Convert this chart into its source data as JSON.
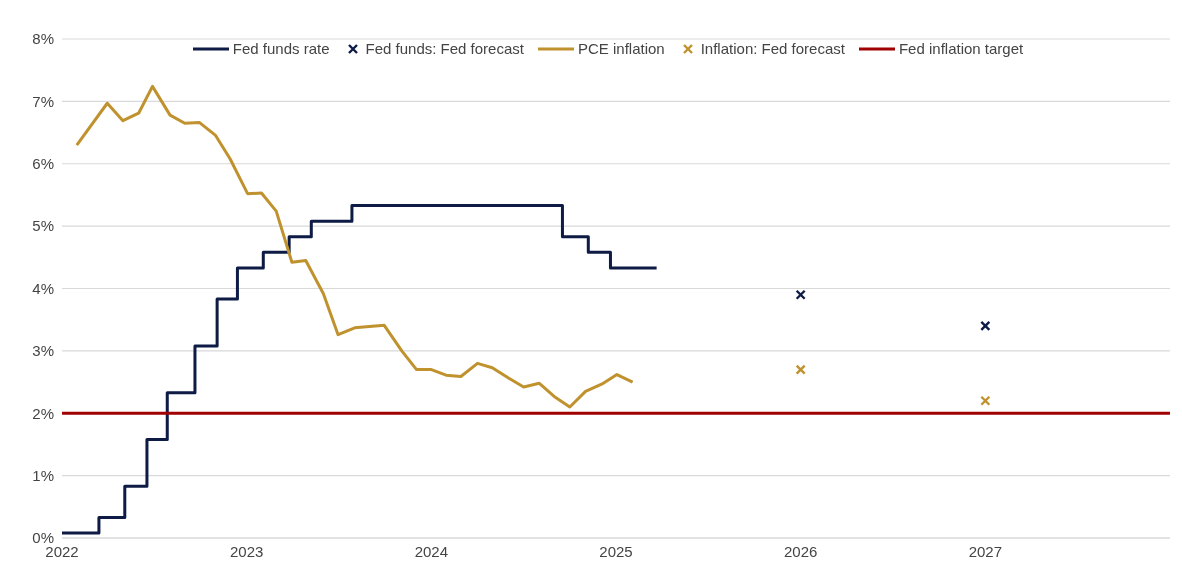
{
  "chart_data": {
    "type": "line",
    "xlim": [
      2022,
      2028
    ],
    "xticks": [
      2022,
      2023,
      2024,
      2025,
      2026,
      2027
    ],
    "ylim": [
      0,
      8
    ],
    "yticks": [
      {
        "value": 0,
        "label": "0%"
      },
      {
        "value": 1,
        "label": "1%"
      },
      {
        "value": 2,
        "label": "2%"
      },
      {
        "value": 3,
        "label": "3%"
      },
      {
        "value": 4,
        "label": "4%"
      },
      {
        "value": 5,
        "label": "5%"
      },
      {
        "value": 6,
        "label": "6%"
      },
      {
        "value": 7,
        "label": "7%"
      },
      {
        "value": 8,
        "label": "8%"
      }
    ],
    "grid": "y",
    "legend": "top",
    "line_style": "solid",
    "series": [
      {
        "name": "Fed funds rate",
        "type": "step",
        "color": "#0d1b45",
        "marker": "none",
        "x": [
          2022.0,
          2022.2,
          2022.34,
          2022.46,
          2022.57,
          2022.72,
          2022.84,
          2022.95,
          2023.09,
          2023.23,
          2023.35,
          2023.57,
          2024.71,
          2024.85,
          2024.97,
          2025.22
        ],
        "values": [
          0.08,
          0.33,
          0.83,
          1.58,
          2.33,
          3.08,
          3.83,
          4.33,
          4.58,
          4.83,
          5.08,
          5.33,
          4.83,
          4.58,
          4.33,
          4.33
        ]
      },
      {
        "name": "Fed funds: Fed forecast",
        "type": "scatter",
        "color": "#0d1b45",
        "marker": "cross",
        "x": [
          2026,
          2027
        ],
        "values": [
          3.9,
          3.4
        ]
      },
      {
        "name": "PCE inflation",
        "color": "#c0922e",
        "marker": "none",
        "x": [
          2022.08,
          2022.245,
          2022.33,
          2022.415,
          2022.49,
          2022.585,
          2022.665,
          2022.745,
          2022.83,
          2022.91,
          2023.005,
          2023.08,
          2023.16,
          2023.245,
          2023.32,
          2023.415,
          2023.495,
          2023.585,
          2023.745,
          2023.84,
          2023.92,
          2024.0,
          2024.08,
          2024.16,
          2024.25,
          2024.33,
          2024.42,
          2024.5,
          2024.585,
          2024.665,
          2024.75,
          2024.835,
          2024.925,
          2025.005,
          2025.09
        ],
        "values": [
          6.3,
          6.97,
          6.69,
          6.81,
          7.24,
          6.78,
          6.65,
          6.66,
          6.46,
          6.08,
          5.52,
          5.53,
          5.24,
          4.42,
          4.45,
          3.92,
          3.26,
          3.37,
          3.41,
          3.0,
          2.7,
          2.7,
          2.61,
          2.59,
          2.8,
          2.73,
          2.56,
          2.42,
          2.48,
          2.27,
          2.1,
          2.35,
          2.47,
          2.62,
          2.5
        ]
      },
      {
        "name": "Inflation: Fed forecast",
        "type": "scatter",
        "color": "#c0922e",
        "marker": "cross",
        "x": [
          2026,
          2027
        ],
        "values": [
          2.7,
          2.2
        ]
      },
      {
        "name": "Fed inflation target",
        "color": "#a00000",
        "marker": "none",
        "x": [
          2022,
          2028
        ],
        "values": [
          2,
          2
        ]
      }
    ]
  }
}
